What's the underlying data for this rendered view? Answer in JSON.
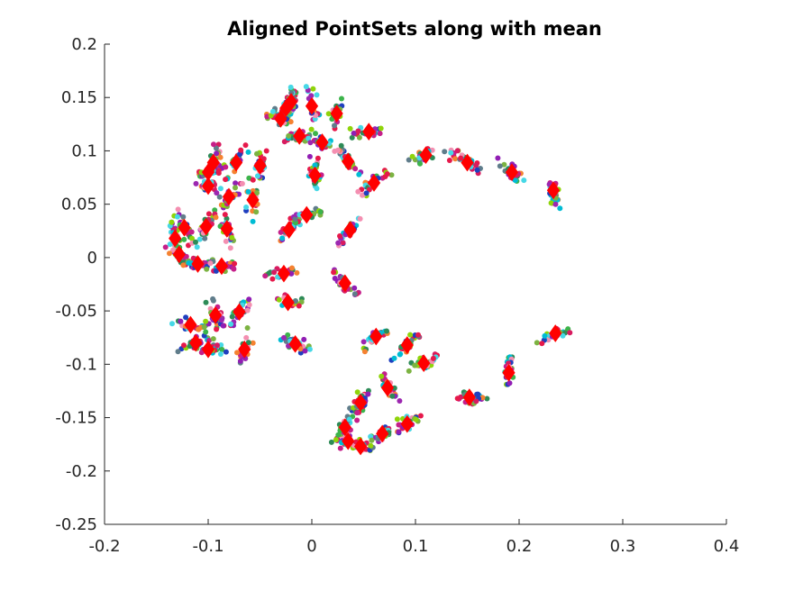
{
  "chart_data": {
    "type": "scatter",
    "title": "Aligned PointSets along with mean",
    "xlabel": "",
    "ylabel": "",
    "xlim": [
      -0.2,
      0.4
    ],
    "ylim": [
      -0.25,
      0.2
    ],
    "xticks": [
      -0.2,
      -0.1,
      0,
      0.1,
      0.2,
      0.3,
      0.4
    ],
    "xtick_labels": [
      "-0.2",
      "-0.1",
      "0",
      "0.1",
      "0.2",
      "0.3",
      "0.4"
    ],
    "yticks": [
      -0.25,
      -0.2,
      -0.15,
      -0.1,
      -0.05,
      0,
      0.05,
      0.1,
      0.15,
      0.2
    ],
    "ytick_labels": [
      "-0.25",
      "-0.2",
      "-0.15",
      "-0.1",
      "-0.05",
      "0",
      "0.05",
      "0.1",
      "0.15",
      "0.2"
    ],
    "grid": false,
    "legend": "none",
    "mean_marker_color": "#ff0000",
    "pointset_colors": [
      "#e6194b",
      "#3cb44b",
      "#1f3fbf",
      "#f58231",
      "#911eb4",
      "#46d8e6",
      "#c51f8a",
      "#8fd40a",
      "#f48fb1",
      "#2e8b57",
      "#00bcd4",
      "#9c27b0",
      "#607d8b",
      "#d81b60",
      "#7cb342"
    ],
    "mean_points": [
      {
        "x": 0.047,
        "y": -0.177
      },
      {
        "x": 0.035,
        "y": -0.172
      },
      {
        "x": 0.068,
        "y": -0.165
      },
      {
        "x": 0.032,
        "y": -0.159
      },
      {
        "x": 0.092,
        "y": -0.156
      },
      {
        "x": 0.047,
        "y": -0.136
      },
      {
        "x": 0.152,
        "y": -0.131
      },
      {
        "x": 0.073,
        "y": -0.122
      },
      {
        "x": 0.19,
        "y": -0.108
      },
      {
        "x": 0.108,
        "y": -0.099
      },
      {
        "x": 0.092,
        "y": -0.082
      },
      {
        "x": 0.062,
        "y": -0.074
      },
      {
        "x": 0.235,
        "y": -0.071
      },
      {
        "x": -0.1,
        "y": -0.086
      },
      {
        "x": -0.065,
        "y": -0.086
      },
      {
        "x": -0.112,
        "y": -0.08
      },
      {
        "x": -0.117,
        "y": -0.063
      },
      {
        "x": -0.093,
        "y": -0.054
      },
      {
        "x": -0.07,
        "y": -0.051
      },
      {
        "x": -0.016,
        "y": -0.081
      },
      {
        "x": -0.023,
        "y": -0.042
      },
      {
        "x": 0.032,
        "y": -0.024
      },
      {
        "x": -0.027,
        "y": -0.015
      },
      {
        "x": -0.128,
        "y": 0.003
      },
      {
        "x": -0.11,
        "y": -0.006
      },
      {
        "x": -0.087,
        "y": -0.008
      },
      {
        "x": -0.132,
        "y": 0.018
      },
      {
        "x": -0.123,
        "y": 0.028
      },
      {
        "x": -0.102,
        "y": 0.029
      },
      {
        "x": -0.082,
        "y": 0.027
      },
      {
        "x": -0.022,
        "y": 0.026
      },
      {
        "x": 0.037,
        "y": 0.026
      },
      {
        "x": -0.005,
        "y": 0.04
      },
      {
        "x": -0.057,
        "y": 0.054
      },
      {
        "x": -0.08,
        "y": 0.057
      },
      {
        "x": -0.1,
        "y": 0.067
      },
      {
        "x": 0.06,
        "y": 0.07
      },
      {
        "x": 0.233,
        "y": 0.063
      },
      {
        "x": 0.003,
        "y": 0.077
      },
      {
        "x": -0.1,
        "y": 0.08
      },
      {
        "x": -0.05,
        "y": 0.086
      },
      {
        "x": -0.095,
        "y": 0.089
      },
      {
        "x": -0.073,
        "y": 0.089
      },
      {
        "x": 0.035,
        "y": 0.09
      },
      {
        "x": 0.15,
        "y": 0.089
      },
      {
        "x": 0.193,
        "y": 0.08
      },
      {
        "x": 0.11,
        "y": 0.096
      },
      {
        "x": -0.012,
        "y": 0.114
      },
      {
        "x": 0.01,
        "y": 0.108
      },
      {
        "x": 0.055,
        "y": 0.118
      },
      {
        "x": -0.03,
        "y": 0.13
      },
      {
        "x": 0.024,
        "y": 0.135
      },
      {
        "x": -0.025,
        "y": 0.14
      },
      {
        "x": 0.0,
        "y": 0.142
      },
      {
        "x": -0.02,
        "y": 0.146
      }
    ]
  }
}
